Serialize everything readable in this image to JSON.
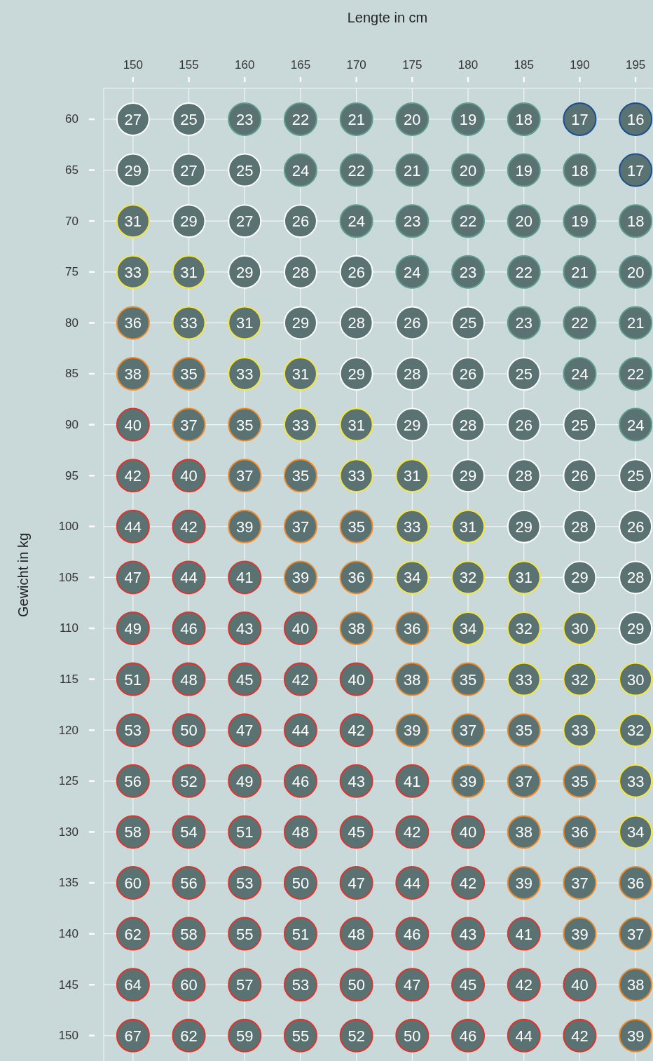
{
  "chart_data": {
    "type": "heatmap",
    "xlabel": "Lengte in cm",
    "ylabel": "Gewicht in kg",
    "grid": true,
    "data_labels": true,
    "categories": [
      "150",
      "155",
      "160",
      "165",
      "170",
      "175",
      "180",
      "185",
      "190",
      "195"
    ],
    "y_categories": [
      "60",
      "65",
      "70",
      "75",
      "80",
      "85",
      "90",
      "95",
      "100",
      "105",
      "110",
      "115",
      "120",
      "125",
      "130",
      "135",
      "140",
      "145",
      "150"
    ],
    "cells": [
      [
        27,
        25,
        23,
        22,
        21,
        20,
        19,
        18,
        17,
        16
      ],
      [
        29,
        27,
        25,
        24,
        22,
        21,
        20,
        19,
        18,
        17
      ],
      [
        31,
        29,
        27,
        26,
        24,
        23,
        22,
        20,
        19,
        18
      ],
      [
        33,
        31,
        29,
        28,
        26,
        24,
        23,
        22,
        21,
        20
      ],
      [
        36,
        33,
        31,
        29,
        28,
        26,
        25,
        23,
        22,
        21
      ],
      [
        38,
        35,
        33,
        31,
        29,
        28,
        26,
        25,
        24,
        22
      ],
      [
        40,
        37,
        35,
        33,
        31,
        29,
        28,
        26,
        25,
        24
      ],
      [
        42,
        40,
        37,
        35,
        33,
        31,
        29,
        28,
        26,
        25
      ],
      [
        44,
        42,
        39,
        37,
        35,
        33,
        31,
        29,
        28,
        26
      ],
      [
        47,
        44,
        41,
        39,
        36,
        34,
        32,
        31,
        29,
        28
      ],
      [
        49,
        46,
        43,
        40,
        38,
        36,
        34,
        32,
        30,
        29
      ],
      [
        51,
        48,
        45,
        42,
        40,
        38,
        35,
        33,
        32,
        30
      ],
      [
        53,
        50,
        47,
        44,
        42,
        39,
        37,
        35,
        33,
        32
      ],
      [
        56,
        52,
        49,
        46,
        43,
        41,
        39,
        37,
        35,
        33
      ],
      [
        58,
        54,
        51,
        48,
        45,
        42,
        40,
        38,
        36,
        34
      ],
      [
        60,
        56,
        53,
        50,
        47,
        44,
        42,
        39,
        37,
        36
      ],
      [
        62,
        58,
        55,
        51,
        48,
        46,
        43,
        41,
        39,
        37
      ],
      [
        64,
        60,
        57,
        53,
        50,
        47,
        45,
        42,
        40,
        38
      ],
      [
        67,
        62,
        59,
        55,
        52,
        50,
        46,
        44,
        42,
        39
      ]
    ],
    "colors": [
      [
        "#ffffff",
        "#ffffff",
        "#5e9c8c",
        "#5e9c8c",
        "#5e9c8c",
        "#5e9c8c",
        "#5e9c8c",
        "#5e9c8c",
        "#1a4f8f",
        "#1a4f8f"
      ],
      [
        "#ffffff",
        "#ffffff",
        "#ffffff",
        "#5e9c8c",
        "#5e9c8c",
        "#5e9c8c",
        "#5e9c8c",
        "#5e9c8c",
        "#5e9c8c",
        "#1a4f8f"
      ],
      [
        "#f5e642",
        "#ffffff",
        "#ffffff",
        "#ffffff",
        "#5e9c8c",
        "#5e9c8c",
        "#5e9c8c",
        "#5e9c8c",
        "#5e9c8c",
        "#5e9c8c"
      ],
      [
        "#f5e642",
        "#f5e642",
        "#ffffff",
        "#ffffff",
        "#ffffff",
        "#5e9c8c",
        "#5e9c8c",
        "#5e9c8c",
        "#5e9c8c",
        "#5e9c8c"
      ],
      [
        "#ee8a2a",
        "#f5e642",
        "#f5e642",
        "#ffffff",
        "#ffffff",
        "#ffffff",
        "#ffffff",
        "#5e9c8c",
        "#5e9c8c",
        "#5e9c8c"
      ],
      [
        "#ee8a2a",
        "#ee8a2a",
        "#f5e642",
        "#f5e642",
        "#ffffff",
        "#ffffff",
        "#ffffff",
        "#ffffff",
        "#5e9c8c",
        "#5e9c8c"
      ],
      [
        "#e0332c",
        "#ee8a2a",
        "#ee8a2a",
        "#f5e642",
        "#f5e642",
        "#ffffff",
        "#ffffff",
        "#ffffff",
        "#ffffff",
        "#5e9c8c"
      ],
      [
        "#e0332c",
        "#e0332c",
        "#ee8a2a",
        "#ee8a2a",
        "#f5e642",
        "#f5e642",
        "#ffffff",
        "#ffffff",
        "#ffffff",
        "#ffffff"
      ],
      [
        "#e0332c",
        "#e0332c",
        "#ee8a2a",
        "#ee8a2a",
        "#ee8a2a",
        "#f5e642",
        "#f5e642",
        "#ffffff",
        "#ffffff",
        "#ffffff"
      ],
      [
        "#e0332c",
        "#e0332c",
        "#e0332c",
        "#ee8a2a",
        "#ee8a2a",
        "#f5e642",
        "#f5e642",
        "#f5e642",
        "#ffffff",
        "#ffffff"
      ],
      [
        "#e0332c",
        "#e0332c",
        "#e0332c",
        "#e0332c",
        "#ee8a2a",
        "#ee8a2a",
        "#f5e642",
        "#f5e642",
        "#f5e642",
        "#ffffff"
      ],
      [
        "#e0332c",
        "#e0332c",
        "#e0332c",
        "#e0332c",
        "#e0332c",
        "#ee8a2a",
        "#ee8a2a",
        "#f5e642",
        "#f5e642",
        "#f5e642"
      ],
      [
        "#e0332c",
        "#e0332c",
        "#e0332c",
        "#e0332c",
        "#e0332c",
        "#ee8a2a",
        "#ee8a2a",
        "#ee8a2a",
        "#f5e642",
        "#f5e642"
      ],
      [
        "#e0332c",
        "#e0332c",
        "#e0332c",
        "#e0332c",
        "#e0332c",
        "#e0332c",
        "#ee8a2a",
        "#ee8a2a",
        "#ee8a2a",
        "#f5e642"
      ],
      [
        "#e0332c",
        "#e0332c",
        "#e0332c",
        "#e0332c",
        "#e0332c",
        "#e0332c",
        "#e0332c",
        "#ee8a2a",
        "#ee8a2a",
        "#f5e642"
      ],
      [
        "#e0332c",
        "#e0332c",
        "#e0332c",
        "#e0332c",
        "#e0332c",
        "#e0332c",
        "#e0332c",
        "#ee8a2a",
        "#ee8a2a",
        "#ee8a2a"
      ],
      [
        "#e0332c",
        "#e0332c",
        "#e0332c",
        "#e0332c",
        "#e0332c",
        "#e0332c",
        "#e0332c",
        "#e0332c",
        "#ee8a2a",
        "#ee8a2a"
      ],
      [
        "#e0332c",
        "#e0332c",
        "#e0332c",
        "#e0332c",
        "#e0332c",
        "#e0332c",
        "#e0332c",
        "#e0332c",
        "#e0332c",
        "#ee8a2a"
      ],
      [
        "#e0332c",
        "#e0332c",
        "#e0332c",
        "#e0332c",
        "#e0332c",
        "#e0332c",
        "#e0332c",
        "#e0332c",
        "#e0332c",
        "#ee8a2a"
      ]
    ]
  }
}
